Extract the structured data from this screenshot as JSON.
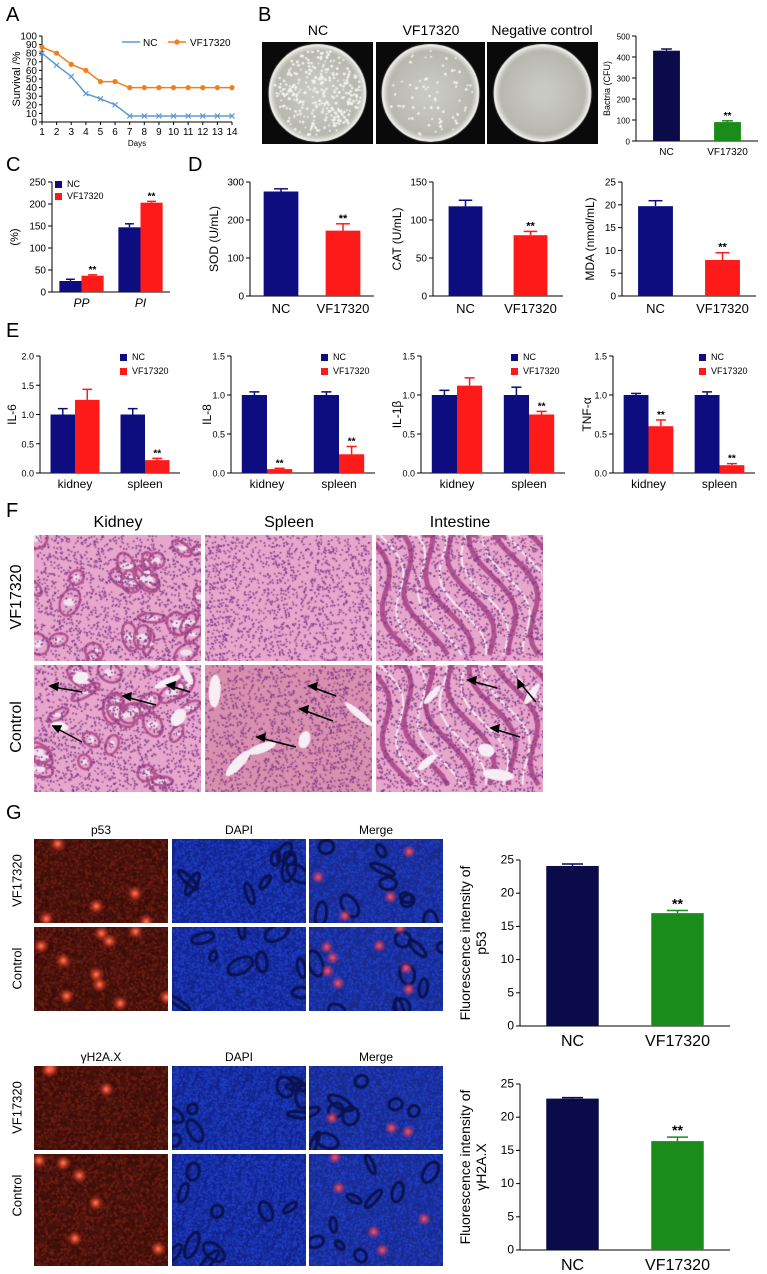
{
  "panels": {
    "A": {
      "letter": "A"
    },
    "B": {
      "letter": "B",
      "photo_titles": [
        "NC",
        "VF17320",
        "Negative control"
      ]
    },
    "C": {
      "letter": "C"
    },
    "D": {
      "letter": "D"
    },
    "E": {
      "letter": "E"
    },
    "F": {
      "letter": "F",
      "col_titles": [
        "Kidney",
        "Spleen",
        "Intestine"
      ],
      "row_titles": [
        "VF17320",
        "Control"
      ]
    },
    "G": {
      "letter": "G",
      "top": {
        "col_titles": [
          "p53",
          "DAPI",
          "Merge"
        ],
        "row_titles": [
          "VF17320",
          "Control"
        ]
      },
      "bottom": {
        "col_titles": [
          "γH2A.X",
          "DAPI",
          "Merge"
        ],
        "row_titles": [
          "VF17320",
          "Control"
        ]
      }
    }
  },
  "colors": {
    "navy": "#0d0d80",
    "orange": "#f07f1c",
    "blue_line": "#5b9bd5",
    "green": "#1a8c1a",
    "dark_navy": "#0b0b4a",
    "red": "#ff1a1a",
    "he_pink": "#e7a6cc",
    "fluor_red": "#d23c1e",
    "fluor_blue": "#2240c8"
  },
  "chart_data": [
    {
      "id": "A",
      "type": "line",
      "xlabel": "Days",
      "ylabel": "Survival /%",
      "x": [
        1,
        2,
        3,
        4,
        5,
        6,
        7,
        8,
        9,
        10,
        11,
        12,
        13,
        14
      ],
      "xlim": [
        1,
        14
      ],
      "ylim": [
        0,
        100
      ],
      "yticks": [
        0,
        10,
        20,
        30,
        40,
        50,
        60,
        70,
        80,
        90,
        100
      ],
      "series": [
        {
          "name": "NC",
          "values": [
            80,
            66,
            53,
            33,
            27,
            20,
            7,
            7,
            7,
            7,
            7,
            7,
            7,
            7
          ]
        },
        {
          "name": "VF17320",
          "values": [
            87,
            80,
            67,
            60,
            47,
            47,
            40,
            40,
            40,
            40,
            40,
            40,
            40,
            40
          ]
        }
      ],
      "legend": "top-center"
    },
    {
      "id": "B",
      "type": "bar",
      "ylabel": "Bactria (CFU)",
      "categories": [
        "NC",
        "VF17320"
      ],
      "values": [
        430,
        90
      ],
      "errors": [
        8,
        6
      ],
      "sig": [
        "",
        "**"
      ],
      "ylim": [
        0,
        500
      ],
      "yticks": [
        0,
        100,
        200,
        300,
        400,
        500
      ]
    },
    {
      "id": "C",
      "type": "bar",
      "ylabel": "(%)",
      "categories": [
        "PP",
        "PI"
      ],
      "series": [
        {
          "name": "NC",
          "values": [
            25,
            147
          ],
          "errors": [
            4,
            8
          ]
        },
        {
          "name": "VF17320",
          "values": [
            37,
            203
          ],
          "errors": [
            2,
            3
          ]
        }
      ],
      "sig": [
        "**",
        "**"
      ],
      "ylim": [
        0,
        250
      ],
      "yticks": [
        0,
        50,
        100,
        150,
        200,
        250
      ],
      "legend": "top-left"
    },
    {
      "id": "D1",
      "type": "bar",
      "ylabel": "SOD (U/mL)",
      "categories": [
        "NC",
        "VF17320"
      ],
      "values": [
        275,
        172
      ],
      "errors": [
        7,
        18
      ],
      "sig": [
        "",
        "**"
      ],
      "ylim": [
        0,
        300
      ],
      "yticks": [
        0,
        100,
        200,
        300
      ]
    },
    {
      "id": "D2",
      "type": "bar",
      "ylabel": "CAT (U/mL)",
      "categories": [
        "NC",
        "VF17320"
      ],
      "values": [
        118,
        80
      ],
      "errors": [
        8,
        5
      ],
      "sig": [
        "",
        "**"
      ],
      "ylim": [
        0,
        150
      ],
      "yticks": [
        0,
        50,
        100,
        150
      ]
    },
    {
      "id": "D3",
      "type": "bar",
      "ylabel": "MDA (nmol/mL)",
      "categories": [
        "NC",
        "VF17320"
      ],
      "values": [
        19.7,
        7.9
      ],
      "errors": [
        1.2,
        1.6
      ],
      "sig": [
        "",
        "**"
      ],
      "ylim": [
        0,
        25
      ],
      "yticks": [
        0,
        5,
        10,
        15,
        20,
        25
      ]
    },
    {
      "id": "E1",
      "type": "bar",
      "ylabel": "IL-6",
      "categories": [
        "kidney",
        "spleen"
      ],
      "series": [
        {
          "name": "NC",
          "values": [
            1.0,
            1.0
          ],
          "errors": [
            0.1,
            0.1
          ]
        },
        {
          "name": "VF17320",
          "values": [
            1.25,
            0.22
          ],
          "errors": [
            0.18,
            0.03
          ]
        }
      ],
      "sig": [
        "",
        "**"
      ],
      "ylim": [
        0,
        2.0
      ],
      "yticks": [
        "0.0",
        "0.5",
        "1.0",
        "1.5",
        "2.0"
      ],
      "legend": "top-right"
    },
    {
      "id": "E2",
      "type": "bar",
      "ylabel": "IL-8",
      "categories": [
        "kidney",
        "spleen"
      ],
      "series": [
        {
          "name": "NC",
          "values": [
            1.0,
            1.0
          ],
          "errors": [
            0.04,
            0.04
          ]
        },
        {
          "name": "VF17320",
          "values": [
            0.05,
            0.24
          ],
          "errors": [
            0.01,
            0.1
          ]
        }
      ],
      "sig": [
        "**",
        "**"
      ],
      "ylim": [
        0,
        1.5
      ],
      "yticks": [
        "0.0",
        "0.5",
        "1.0",
        "1.5"
      ],
      "legend": "top-right"
    },
    {
      "id": "E3",
      "type": "bar",
      "ylabel": "IL-1β",
      "categories": [
        "kidney",
        "spleen"
      ],
      "series": [
        {
          "name": "NC",
          "values": [
            1.0,
            1.0
          ],
          "errors": [
            0.06,
            0.1
          ]
        },
        {
          "name": "VF17320",
          "values": [
            1.12,
            0.75
          ],
          "errors": [
            0.1,
            0.04
          ]
        }
      ],
      "sig": [
        "",
        "**"
      ],
      "ylim": [
        0,
        1.5
      ],
      "yticks": [
        "0.0",
        "0.5",
        "1.0",
        "1.5"
      ],
      "legend": "top-right"
    },
    {
      "id": "E4",
      "type": "bar",
      "ylabel": "TNF-α",
      "categories": [
        "kidney",
        "spleen"
      ],
      "series": [
        {
          "name": "NC",
          "values": [
            1.0,
            1.0
          ],
          "errors": [
            0.02,
            0.04
          ]
        },
        {
          "name": "VF17320",
          "values": [
            0.6,
            0.1
          ],
          "errors": [
            0.08,
            0.02
          ]
        }
      ],
      "sig": [
        "**",
        "**"
      ],
      "ylim": [
        0,
        1.5
      ],
      "yticks": [
        "0.0",
        "0.5",
        "1.0",
        "1.5"
      ],
      "legend": "top-right"
    },
    {
      "id": "G1",
      "type": "bar",
      "ylabel": "Fluorescence intensity of p53",
      "categories": [
        "NC",
        "VF17320"
      ],
      "values": [
        24.1,
        17.0
      ],
      "errors": [
        0.3,
        0.4
      ],
      "sig": [
        "",
        "**"
      ],
      "ylim": [
        0,
        25
      ],
      "yticks": [
        0,
        5,
        10,
        15,
        20,
        25
      ]
    },
    {
      "id": "G2",
      "type": "bar",
      "ylabel": "Fluorescence intensity of γH2A.X",
      "categories": [
        "NC",
        "VF17320"
      ],
      "values": [
        22.8,
        16.4
      ],
      "errors": [
        0.15,
        0.6
      ],
      "sig": [
        "",
        "**"
      ],
      "ylim": [
        0,
        25
      ],
      "yticks": [
        0,
        5,
        10,
        15,
        20,
        25
      ]
    }
  ]
}
